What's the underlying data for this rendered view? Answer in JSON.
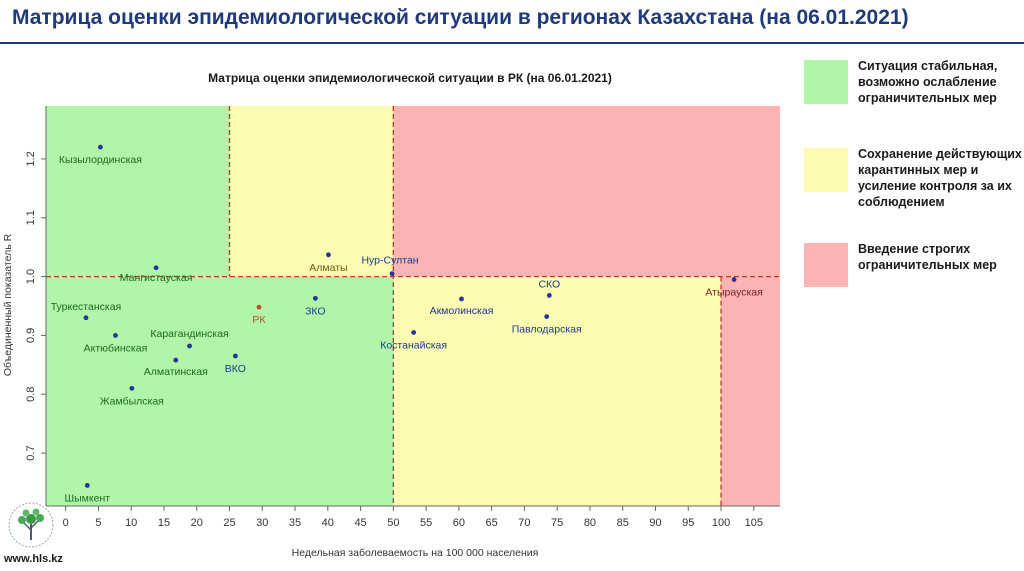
{
  "slide": {
    "title": "Матрица оценки эпидемиологической ситуации в регионах Казахстана (на 06.01.2021)",
    "site_url": "www.hls.kz"
  },
  "legend": [
    {
      "color": "#b0f5a8",
      "text": "Ситуация стабильная, возможно ослабление ограничительных мер"
    },
    {
      "color": "#fbfbb2",
      "text": "Сохранение действующих карантинных мер и усиление контроля за их соблюдением"
    },
    {
      "color": "#fbb4b4",
      "text": "Введение строгих ограничительных мер"
    }
  ],
  "chart_data": {
    "type": "scatter",
    "title": "Матрица оценки эпидемиологической ситуации в РК (на 06.01.2021)",
    "xlabel": "Недельная заболеваемость на 100 000 населения",
    "ylabel": "Объединенный показатель R",
    "xlim": [
      -3,
      109
    ],
    "ylim": [
      0.61,
      1.29
    ],
    "xticks": [
      0,
      5,
      10,
      15,
      20,
      25,
      30,
      35,
      40,
      45,
      50,
      55,
      60,
      65,
      70,
      75,
      80,
      85,
      90,
      95,
      100,
      105
    ],
    "yticks": [
      0.7,
      0.8,
      0.9,
      1.0,
      1.1,
      1.2
    ],
    "ytick_labels": [
      "0.7",
      "0.8",
      "0.9",
      "1.0",
      "1.1",
      "1.2"
    ],
    "zones": [
      {
        "color": "#b0f5a8",
        "x": [
          -3,
          50
        ],
        "y": [
          0.61,
          1.0
        ]
      },
      {
        "color": "#b0f5a8",
        "x": [
          -3,
          25
        ],
        "y": [
          1.0,
          1.29
        ]
      },
      {
        "color": "#fbfbb2",
        "x": [
          25,
          50
        ],
        "y": [
          1.0,
          1.29
        ]
      },
      {
        "color": "#fbfbb2",
        "x": [
          50,
          100
        ],
        "y": [
          0.61,
          1.0
        ]
      },
      {
        "color": "#fbb4b4",
        "x": [
          50,
          109
        ],
        "y": [
          1.0,
          1.29
        ]
      },
      {
        "color": "#fbb4b4",
        "x": [
          100,
          109
        ],
        "y": [
          0.61,
          1.0
        ]
      }
    ],
    "thresholds": {
      "x": [
        25,
        50,
        100
      ],
      "y": 1.0,
      "color": "#c8372d"
    },
    "points": [
      {
        "name": "Кызылординская",
        "x": 5.3,
        "y": 1.22,
        "color": "#27339a",
        "label_color": "#1d6b1d"
      },
      {
        "name": "Мангистауская",
        "x": 13.8,
        "y": 1.015,
        "color": "#27339a",
        "label_color": "#1d6b1d"
      },
      {
        "name": "Туркестанская",
        "x": 3.1,
        "y": 0.93,
        "color": "#27339a",
        "label_color": "#1d6b1d"
      },
      {
        "name": "Актюбинская",
        "x": 7.6,
        "y": 0.9,
        "color": "#27339a",
        "label_color": "#1d6b1d"
      },
      {
        "name": "Карагандинская",
        "x": 18.9,
        "y": 0.882,
        "color": "#27339a",
        "label_color": "#1d6b1d"
      },
      {
        "name": "Алматинская",
        "x": 16.8,
        "y": 0.858,
        "color": "#27339a",
        "label_color": "#1d6b1d"
      },
      {
        "name": "Жамбылская",
        "x": 10.1,
        "y": 0.81,
        "color": "#27339a",
        "label_color": "#1d6b1d"
      },
      {
        "name": "Шымкент",
        "x": 3.3,
        "y": 0.645,
        "color": "#27339a",
        "label_color": "#1d6b1d"
      },
      {
        "name": "РК",
        "x": 29.5,
        "y": 0.948,
        "color": "#b5532a",
        "label_color": "#b5532a"
      },
      {
        "name": "ВКО",
        "x": 25.9,
        "y": 0.865,
        "color": "#27339a",
        "label_color": "#1d3a8a"
      },
      {
        "name": "ЗКО",
        "x": 38.1,
        "y": 0.963,
        "color": "#27339a",
        "label_color": "#1d3a8a"
      },
      {
        "name": "Алматы",
        "x": 40.1,
        "y": 1.037,
        "color": "#27339a",
        "label_color": "#6b5a10"
      },
      {
        "name": "Нур-Султан",
        "x": 49.8,
        "y": 1.005,
        "color": "#27339a",
        "label_color": "#1d3a8a"
      },
      {
        "name": "Костанайская",
        "x": 53.1,
        "y": 0.905,
        "color": "#27339a",
        "label_color": "#1d3a8a"
      },
      {
        "name": "Акмолинская",
        "x": 60.4,
        "y": 0.962,
        "color": "#27339a",
        "label_color": "#1d3a8a"
      },
      {
        "name": "СКО",
        "x": 73.8,
        "y": 0.968,
        "color": "#27339a",
        "label_color": "#1d3a8a"
      },
      {
        "name": "Павлодарская",
        "x": 73.4,
        "y": 0.932,
        "color": "#27339a",
        "label_color": "#1d3a8a"
      },
      {
        "name": "Атырауская",
        "x": 102.0,
        "y": 0.995,
        "color": "#27339a",
        "label_color": "#7a1f1f"
      }
    ]
  }
}
